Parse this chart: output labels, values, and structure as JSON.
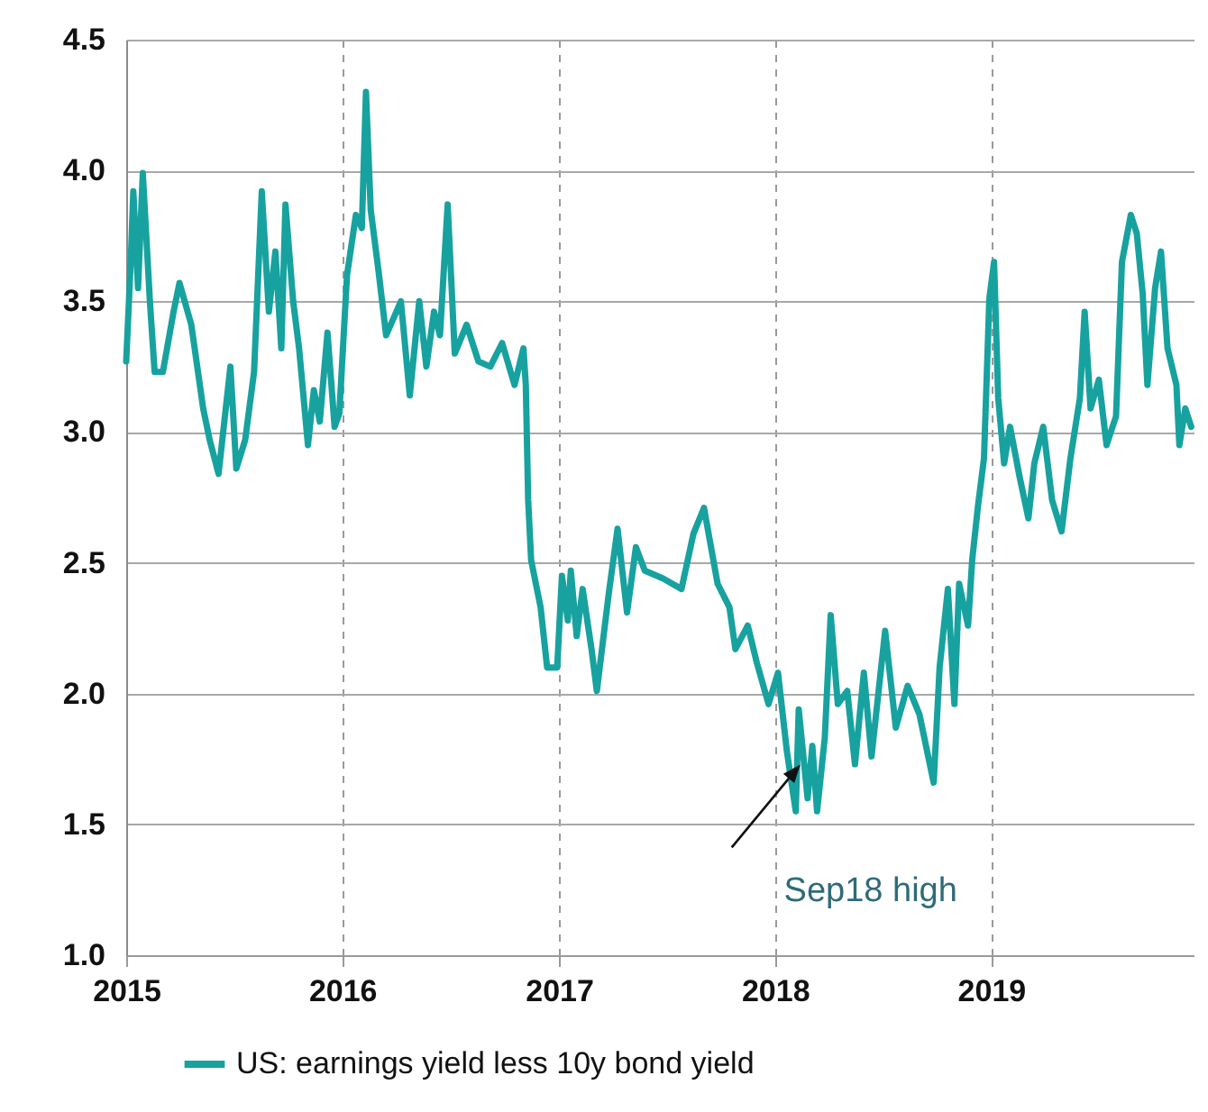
{
  "chart_data": {
    "type": "line",
    "x": [
      "2015-01-01",
      "2015-01-09",
      "2015-01-13",
      "2015-01-21",
      "2015-01-29",
      "2015-02-10",
      "2015-02-18",
      "2015-03-04",
      "2015-03-22",
      "2015-04-01",
      "2015-04-21",
      "2015-05-11",
      "2015-05-22",
      "2015-06-06",
      "2015-06-26",
      "2015-07-06",
      "2015-07-21",
      "2015-08-05",
      "2015-08-18",
      "2015-08-30",
      "2015-09-10",
      "2015-09-20",
      "2015-09-27",
      "2015-10-10",
      "2015-10-20",
      "2015-11-04",
      "2015-11-14",
      "2015-11-24",
      "2015-12-07",
      "2015-12-19",
      "2015-12-27",
      "2016-01-09",
      "2016-01-24",
      "2016-02-03",
      "2016-02-10",
      "2016-02-18",
      "2016-03-02",
      "2016-03-15",
      "2016-04-09",
      "2016-04-24",
      "2016-05-10",
      "2016-05-22",
      "2016-06-04",
      "2016-06-14",
      "2016-06-27",
      "2016-07-09",
      "2016-07-29",
      "2016-08-18",
      "2016-09-07",
      "2016-09-27",
      "2016-10-18",
      "2016-11-02",
      "2016-11-06",
      "2016-11-10",
      "2016-11-15",
      "2016-12-01",
      "2016-12-12",
      "2016-12-29",
      "2017-01-06",
      "2017-01-16",
      "2017-01-21",
      "2017-01-31",
      "2017-02-10",
      "2017-02-25",
      "2017-03-06",
      "2017-03-26",
      "2017-04-10",
      "2017-04-26",
      "2017-05-11",
      "2017-05-26",
      "2017-06-26",
      "2017-07-27",
      "2017-08-16",
      "2017-09-03",
      "2017-09-26",
      "2017-10-16",
      "2017-10-26",
      "2017-11-16",
      "2017-12-01",
      "2017-12-21",
      "2018-01-06",
      "2018-01-21",
      "2018-02-05",
      "2018-02-10",
      "2018-02-25",
      "2018-03-05",
      "2018-03-13",
      "2018-03-26",
      "2018-04-05",
      "2018-04-17",
      "2018-05-03",
      "2018-05-16",
      "2018-05-31",
      "2018-06-13",
      "2018-07-06",
      "2018-07-24",
      "2018-08-13",
      "2018-09-02",
      "2018-09-26",
      "2018-10-06",
      "2018-10-20",
      "2018-10-31",
      "2018-11-08",
      "2018-11-23",
      "2018-11-30",
      "2018-12-10",
      "2018-12-20",
      "2018-12-29",
      "2019-01-06",
      "2019-01-13",
      "2019-01-23",
      "2019-02-02",
      "2019-02-18",
      "2019-03-05",
      "2019-03-15",
      "2019-03-30",
      "2019-04-14",
      "2019-04-30",
      "2019-05-15",
      "2019-05-31",
      "2019-06-08",
      "2019-06-18",
      "2019-07-02",
      "2019-07-15",
      "2019-07-31",
      "2019-08-10",
      "2019-08-25",
      "2019-09-04",
      "2019-09-14",
      "2019-09-22",
      "2019-10-05",
      "2019-10-15",
      "2019-10-26",
      "2019-11-10",
      "2019-11-15",
      "2019-11-25",
      "2019-12-05"
    ],
    "series": [
      {
        "name": "US: earnings yield less 10y bond yield",
        "color": "#17a2a0",
        "values": [
          3.27,
          3.67,
          3.92,
          3.55,
          3.99,
          3.5,
          3.23,
          3.23,
          3.46,
          3.57,
          3.41,
          3.09,
          2.97,
          2.84,
          3.25,
          2.86,
          2.97,
          3.23,
          3.92,
          3.46,
          3.69,
          3.32,
          3.87,
          3.5,
          3.32,
          2.95,
          3.16,
          3.04,
          3.38,
          3.02,
          3.07,
          3.6,
          3.83,
          3.78,
          4.3,
          3.85,
          3.62,
          3.37,
          3.5,
          3.14,
          3.5,
          3.25,
          3.46,
          3.37,
          3.87,
          3.3,
          3.41,
          3.27,
          3.25,
          3.34,
          3.18,
          3.32,
          3.18,
          2.74,
          2.51,
          2.33,
          2.1,
          2.1,
          2.45,
          2.28,
          2.47,
          2.22,
          2.4,
          2.17,
          2.01,
          2.38,
          2.63,
          2.31,
          2.56,
          2.47,
          2.44,
          2.4,
          2.61,
          2.71,
          2.42,
          2.33,
          2.17,
          2.26,
          2.12,
          1.96,
          2.08,
          1.78,
          1.55,
          1.94,
          1.6,
          1.8,
          1.55,
          1.83,
          2.3,
          1.96,
          2.01,
          1.73,
          2.08,
          1.76,
          2.24,
          1.87,
          2.03,
          1.92,
          1.66,
          2.1,
          2.4,
          1.96,
          2.42,
          2.26,
          2.51,
          2.72,
          2.9,
          3.51,
          3.65,
          3.13,
          2.88,
          3.02,
          2.83,
          2.67,
          2.88,
          3.02,
          2.74,
          2.62,
          2.9,
          3.13,
          3.46,
          3.09,
          3.2,
          2.95,
          3.06,
          3.65,
          3.83,
          3.76,
          3.53,
          3.18,
          3.55,
          3.69,
          3.32,
          3.18,
          2.95,
          3.09,
          3.02
        ]
      }
    ],
    "xlim": [
      "2015-01-01",
      "2019-12-09"
    ],
    "xticks": [
      "2015",
      "2016",
      "2017",
      "2018",
      "2019"
    ],
    "ylim": [
      1.0,
      4.5
    ],
    "yticks": [
      {
        "value": 1,
        "label": "1.0"
      },
      {
        "value": 1.5,
        "label": "1.5"
      },
      {
        "value": 2,
        "label": "2.0"
      },
      {
        "value": 2.5,
        "label": "2.5"
      },
      {
        "value": 3,
        "label": "3.0"
      },
      {
        "value": 3.5,
        "label": "3.5"
      },
      {
        "value": 4,
        "label": "4.0"
      },
      {
        "value": 4.5,
        "label": "4.5"
      }
    ],
    "grid": true,
    "legend": "bottom",
    "line_style": "solid",
    "annotations": [
      {
        "text": "Sep18 high",
        "x": "2018-09-26",
        "y": 1.66
      }
    ]
  }
}
